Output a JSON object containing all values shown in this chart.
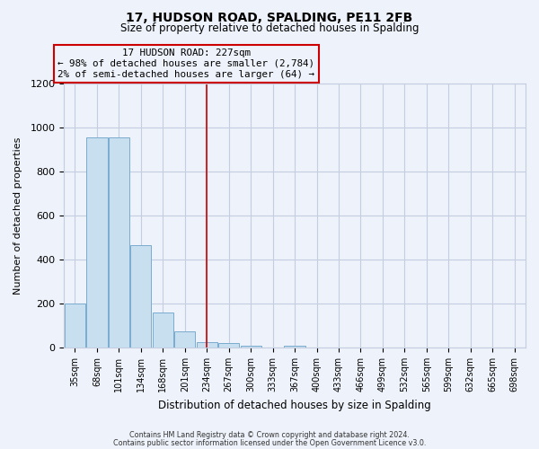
{
  "title": "17, HUDSON ROAD, SPALDING, PE11 2FB",
  "subtitle": "Size of property relative to detached houses in Spalding",
  "xlabel": "Distribution of detached houses by size in Spalding",
  "ylabel": "Number of detached properties",
  "footnote1": "Contains HM Land Registry data © Crown copyright and database right 2024.",
  "footnote2": "Contains public sector information licensed under the Open Government Licence v3.0.",
  "bar_labels": [
    "35sqm",
    "68sqm",
    "101sqm",
    "134sqm",
    "168sqm",
    "201sqm",
    "234sqm",
    "267sqm",
    "300sqm",
    "333sqm",
    "367sqm",
    "400sqm",
    "433sqm",
    "466sqm",
    "499sqm",
    "532sqm",
    "565sqm",
    "599sqm",
    "632sqm",
    "665sqm",
    "698sqm"
  ],
  "bar_values": [
    200,
    955,
    955,
    465,
    160,
    75,
    25,
    20,
    10,
    0,
    10,
    0,
    0,
    0,
    0,
    0,
    0,
    0,
    0,
    0,
    0
  ],
  "bar_color": "#c8dff0",
  "bar_edge_color": "#7aabcf",
  "vline_x": 6.0,
  "vline_color": "#cc0000",
  "annotation_title": "17 HUDSON ROAD: 227sqm",
  "annotation_line1": "← 98% of detached houses are smaller (2,784)",
  "annotation_line2": "2% of semi-detached houses are larger (64) →",
  "annotation_box_color": "#cc0000",
  "ylim": [
    0,
    1200
  ],
  "yticks": [
    0,
    200,
    400,
    600,
    800,
    1000,
    1200
  ],
  "background_color": "#eef2fa",
  "grid_color": "#c5cde0"
}
